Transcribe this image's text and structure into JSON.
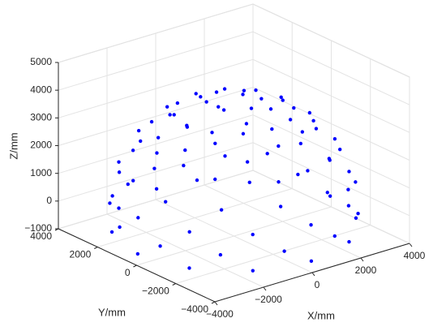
{
  "chart_data": {
    "type": "scatter3d",
    "xlabel": "X/mm",
    "ylabel": "Y/mm",
    "zlabel": "Z/mm",
    "xlim": [
      -4000,
      4000
    ],
    "ylim": [
      -4000,
      4000
    ],
    "zlim": [
      -1000,
      5000
    ],
    "xticks": [
      {
        "value": -4000,
        "label": "−4000"
      },
      {
        "value": -2000,
        "label": "−2000"
      },
      0,
      2000,
      4000
    ],
    "yticks": [
      {
        "value": -4000,
        "label": "−4000"
      },
      {
        "value": -2000,
        "label": "−2000"
      },
      0,
      2000,
      4000
    ],
    "zticks": [
      {
        "value": -1000,
        "label": "−1000"
      },
      0,
      1000,
      2000,
      3000,
      4000,
      5000
    ],
    "grid": true,
    "series": [
      {
        "color": "#0000ff",
        "x": [
          771,
          0,
          -771,
          -771,
          0,
          771,
          1940,
          1680,
          970,
          0,
          -970,
          -1680,
          -1940,
          -1680,
          -970,
          0,
          970,
          1680,
          2560,
          1874,
          686,
          -686,
          -1874,
          -2560,
          -2560,
          -1874,
          -686,
          686,
          1874,
          2560,
          3270,
          2832,
          1635,
          0,
          -1635,
          -2832,
          -3270,
          -2832,
          -1635,
          0,
          1635,
          2832,
          3584,
          2623,
          961,
          -961,
          -2623,
          -3584,
          -3584,
          -2623,
          -961,
          961,
          2623,
          3584,
          3940,
          3412,
          1970,
          0,
          -1970,
          -3412,
          -3940,
          -3412,
          -1970,
          0,
          1970,
          3412,
          3864,
          2828,
          1036,
          -1036,
          -2828,
          -3864,
          -3864,
          -2828,
          -1036,
          1036,
          2828,
          3864,
          3955,
          3425,
          1978,
          0,
          -1978,
          -3425,
          -3955,
          -3425,
          -1978,
          0,
          1978,
          3425
        ],
        "y": [
          445,
          890,
          445,
          -445,
          -890,
          -445,
          0,
          970,
          1680,
          1940,
          1680,
          970,
          0,
          -970,
          -1680,
          -1940,
          -1680,
          -970,
          686,
          1874,
          2560,
          2560,
          1874,
          686,
          -686,
          -1874,
          -2560,
          -2560,
          -1874,
          -686,
          0,
          1635,
          2832,
          3270,
          2832,
          1635,
          0,
          -1635,
          -2832,
          -3270,
          -2832,
          -1635,
          961,
          2623,
          3584,
          3584,
          2623,
          961,
          -961,
          -2623,
          -3584,
          -3584,
          -2623,
          -961,
          0,
          1970,
          3412,
          3940,
          3412,
          1970,
          0,
          -1970,
          -3412,
          -3940,
          -3412,
          -1970,
          1036,
          2828,
          3864,
          3864,
          2828,
          1036,
          -1036,
          -2828,
          -3864,
          -3864,
          -2828,
          -1036,
          0,
          1978,
          3425,
          3955,
          3425,
          1978,
          0,
          -1978,
          -3425,
          -3955,
          -3425,
          -1978
        ],
        "z": [
          3900,
          3900,
          3900,
          3900,
          3900,
          3900,
          3500,
          3500,
          3500,
          3500,
          3500,
          3500,
          3500,
          3500,
          3500,
          3500,
          3500,
          3500,
          3000,
          3000,
          3000,
          3000,
          3000,
          3000,
          3000,
          3000,
          3000,
          3000,
          3000,
          3000,
          2300,
          2300,
          2300,
          2300,
          2300,
          2300,
          2300,
          2300,
          2300,
          2300,
          2300,
          2300,
          1500,
          1500,
          1500,
          1500,
          1500,
          1500,
          1500,
          1500,
          1500,
          1500,
          1500,
          1500,
          700,
          700,
          700,
          700,
          700,
          700,
          700,
          700,
          700,
          700,
          700,
          700,
          0,
          0,
          0,
          0,
          0,
          0,
          0,
          0,
          0,
          0,
          0,
          0,
          -600,
          -600,
          -600,
          -600,
          -600,
          -600,
          -600,
          -600,
          -600,
          -600,
          -600,
          -600
        ]
      }
    ]
  }
}
